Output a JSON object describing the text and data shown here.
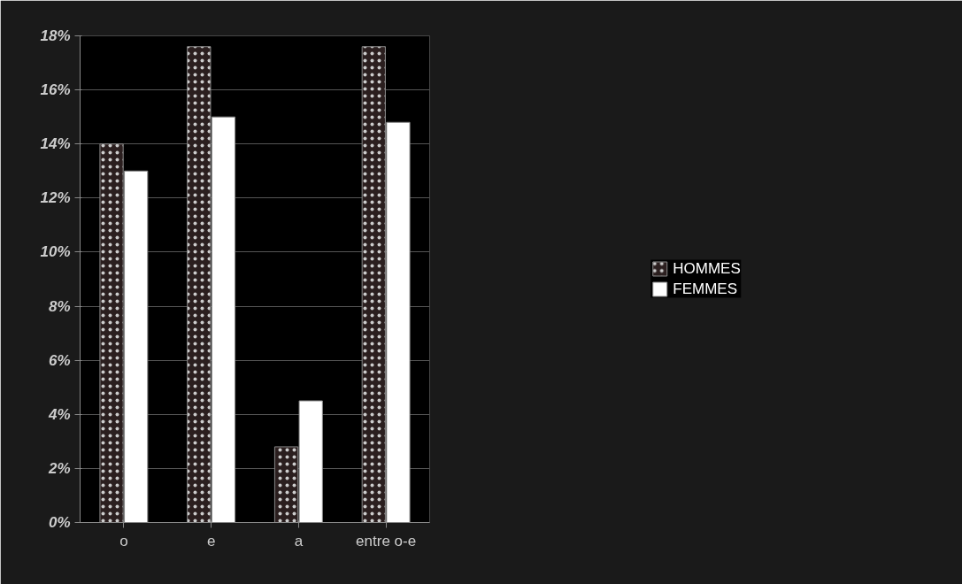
{
  "chart_data": {
    "type": "bar",
    "categories": [
      "o",
      "e",
      "a",
      "entre o-e"
    ],
    "series": [
      {
        "name": "HOMMES",
        "color": "#2b1f1f",
        "values": [
          14,
          17.6,
          2.8,
          17.6
        ]
      },
      {
        "name": "FEMMES",
        "color": "#ffffff",
        "values": [
          13,
          15,
          4.5,
          14.8
        ]
      }
    ],
    "ylim": [
      0,
      18
    ],
    "yticks": [
      {
        "value": 0,
        "label": "0%"
      },
      {
        "value": 2,
        "label": "2%"
      },
      {
        "value": 4,
        "label": "4%"
      },
      {
        "value": 6,
        "label": "6%"
      },
      {
        "value": 8,
        "label": "8%"
      },
      {
        "value": 10,
        "label": "10%"
      },
      {
        "value": 12,
        "label": "12%"
      },
      {
        "value": 14,
        "label": "14%"
      },
      {
        "value": 16,
        "label": "16%"
      },
      {
        "value": 18,
        "label": "18%"
      }
    ],
    "grid": "y",
    "legend": "right"
  }
}
